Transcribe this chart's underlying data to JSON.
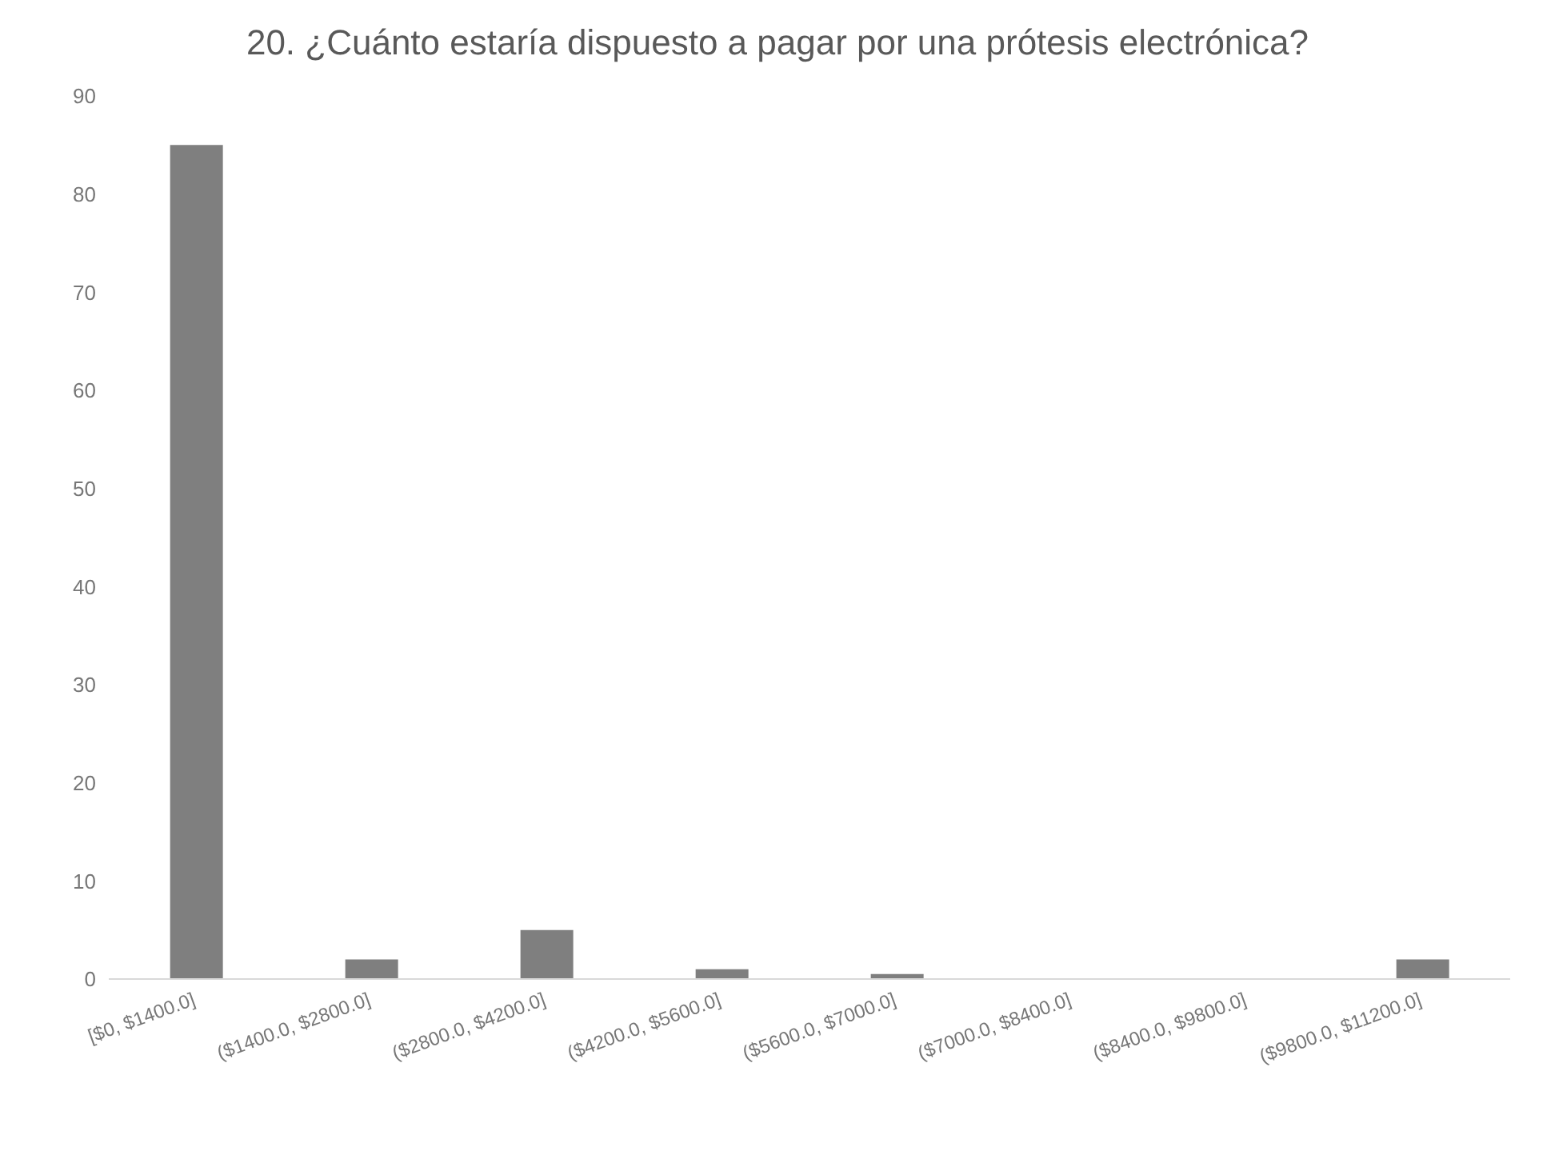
{
  "chart_data": {
    "type": "bar",
    "title": "20. ¿Cuánto estaría dispuesto a pagar por una prótesis electrónica?",
    "categories": [
      "[$0, $1400.0]",
      "($1400.0, $2800.0]",
      "($2800.0, $4200.0]",
      "($4200.0, $5600.0]",
      "($5600.0, $7000.0]",
      "($7000.0, $8400.0]",
      "($8400.0, $9800.0]",
      "($9800.0, $11200.0]"
    ],
    "values": [
      85,
      2,
      5,
      1,
      0.5,
      0,
      0,
      2
    ],
    "color": "#7f7f7f",
    "ylim": [
      0,
      90
    ],
    "yticks": [
      0,
      10,
      20,
      30,
      40,
      50,
      60,
      70,
      80,
      90
    ],
    "grid": false
  }
}
